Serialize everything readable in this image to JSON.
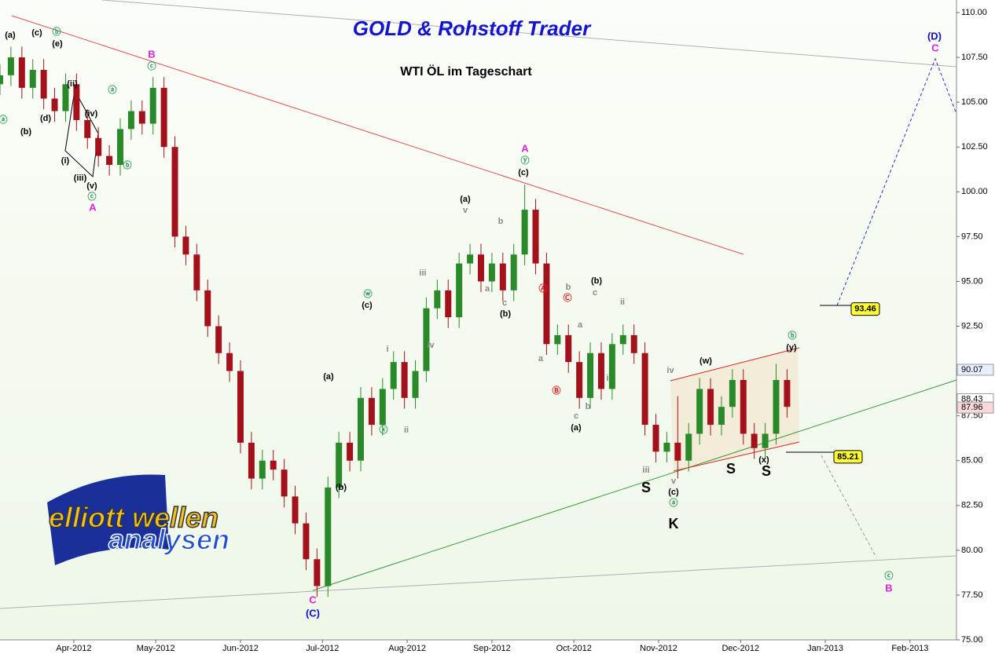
{
  "chart_data": {
    "type": "candlestick",
    "title": "GOLD & Rohstoff Trader",
    "subtitle": "WTI ÖL im Tageschart",
    "logo": [
      "elliott wellen",
      "analysen"
    ],
    "up_color": "#2a8a2a",
    "down_color": "#a3121c",
    "xlim": [
      0,
      350
    ],
    "xticks": [
      {
        "value": 27,
        "label": "Apr-2012"
      },
      {
        "value": 57,
        "label": "May-2012"
      },
      {
        "value": 88,
        "label": "Jun-2012"
      },
      {
        "value": 118,
        "label": "Jul-2012"
      },
      {
        "value": 149,
        "label": "Aug-2012"
      },
      {
        "value": 180,
        "label": "Sep-2012"
      },
      {
        "value": 210,
        "label": "Oct-2012"
      },
      {
        "value": 241,
        "label": "Nov-2012"
      },
      {
        "value": 271,
        "label": "Dec-2012"
      },
      {
        "value": 302,
        "label": "Jan-2013"
      },
      {
        "value": 333,
        "label": "Feb-2013"
      }
    ],
    "ylim": [
      75,
      110.7
    ],
    "yticks": [
      {
        "value": 75,
        "label": "75.00"
      },
      {
        "value": 77.5,
        "label": "77.50"
      },
      {
        "value": 80,
        "label": "80.00"
      },
      {
        "value": 82.5,
        "label": "82.50"
      },
      {
        "value": 85,
        "label": "85.00"
      },
      {
        "value": 87.5,
        "label": "87.50"
      },
      {
        "value": 90,
        "label": "90.00"
      },
      {
        "value": 92.5,
        "label": "92.50"
      },
      {
        "value": 95,
        "label": "95.00"
      },
      {
        "value": 97.5,
        "label": "97.50"
      },
      {
        "value": 100,
        "label": "100.00"
      },
      {
        "value": 102.5,
        "label": "102.50"
      },
      {
        "value": 105,
        "label": "105.00"
      },
      {
        "value": 107.5,
        "label": "107.50"
      },
      {
        "value": 110,
        "label": "110.00"
      }
    ],
    "x": [
      0,
      4,
      8,
      12,
      16,
      20,
      24,
      28,
      32,
      36,
      40,
      44,
      48,
      52,
      56,
      60,
      64,
      68,
      72,
      76,
      80,
      84,
      88,
      92,
      96,
      100,
      104,
      108,
      112,
      116,
      120,
      124,
      128,
      132,
      136,
      140,
      144,
      148,
      152,
      156,
      160,
      164,
      168,
      172,
      176,
      180,
      184,
      188,
      192,
      196,
      200,
      204,
      208,
      212,
      216,
      220,
      224,
      228,
      232,
      236,
      240,
      244,
      248,
      252,
      256,
      260,
      264,
      268,
      272,
      276,
      280,
      284,
      288
    ],
    "open": [
      106.0,
      106.5,
      107.5,
      105.8,
      106.8,
      105.2,
      104.5,
      106.0,
      104.0,
      103.0,
      102.0,
      101.5,
      103.5,
      104.5,
      103.8,
      105.8,
      102.5,
      97.5,
      96.5,
      94.5,
      92.5,
      91.0,
      90.0,
      86.0,
      84.0,
      85.0,
      84.5,
      83.0,
      81.5,
      79.5,
      78.0,
      83.5,
      86.0,
      85.0,
      88.5,
      87.0,
      89.0,
      90.5,
      88.5,
      90.0,
      93.5,
      94.5,
      93.0,
      96.0,
      96.5,
      95.0,
      96.0,
      94.5,
      96.5,
      99.0,
      96.0,
      91.5,
      92.0,
      90.5,
      88.5,
      91.0,
      89.0,
      91.5,
      92.0,
      91.0,
      87.0,
      85.5,
      86.0,
      85.0,
      86.5,
      89.0,
      87.0,
      88.0,
      89.5,
      86.5,
      85.7,
      86.5,
      89.5
    ],
    "high": [
      107.1,
      108.1,
      108.1,
      107.4,
      107.4,
      105.8,
      106.6,
      106.6,
      104.6,
      103.6,
      102.6,
      104.1,
      105.1,
      105.1,
      106.4,
      106.4,
      103.1,
      98.1,
      97.1,
      95.1,
      93.1,
      91.6,
      90.6,
      86.6,
      85.6,
      85.6,
      85.1,
      83.6,
      82.1,
      80.1,
      84.1,
      86.6,
      86.6,
      89.1,
      89.1,
      89.6,
      91.1,
      91.1,
      90.6,
      94.1,
      95.1,
      95.1,
      96.6,
      97.1,
      97.1,
      96.6,
      96.6,
      97.1,
      100.4,
      99.6,
      96.6,
      92.6,
      92.6,
      91.1,
      91.6,
      91.6,
      92.1,
      92.6,
      92.6,
      91.6,
      87.6,
      86.6,
      88.6,
      87.1,
      89.6,
      89.6,
      88.6,
      90.1,
      90.1,
      87.1,
      87.1,
      90.4,
      90.1
    ],
    "low": [
      105.4,
      105.9,
      105.2,
      105.2,
      104.6,
      103.9,
      103.9,
      103.4,
      102.4,
      101.4,
      100.9,
      100.9,
      102.9,
      103.2,
      103.2,
      101.9,
      96.9,
      95.9,
      93.9,
      91.9,
      90.4,
      89.4,
      85.4,
      83.4,
      83.4,
      83.9,
      82.4,
      80.9,
      78.9,
      77.4,
      77.4,
      82.9,
      84.4,
      84.4,
      86.4,
      86.4,
      88.4,
      87.9,
      87.9,
      89.4,
      92.9,
      92.4,
      92.4,
      95.4,
      94.4,
      94.4,
      93.9,
      93.9,
      95.9,
      95.4,
      90.9,
      90.9,
      89.9,
      87.9,
      87.9,
      88.4,
      88.4,
      90.9,
      90.4,
      86.4,
      84.9,
      84.9,
      84.0,
      84.4,
      85.9,
      86.4,
      86.4,
      87.4,
      85.9,
      85.1,
      85.1,
      85.9,
      87.4
    ],
    "close": [
      106.5,
      107.5,
      105.8,
      106.8,
      105.2,
      104.5,
      106.0,
      104.0,
      103.0,
      102.0,
      101.5,
      103.5,
      104.5,
      103.8,
      105.8,
      102.5,
      97.5,
      96.5,
      94.5,
      92.5,
      91.0,
      90.0,
      86.0,
      84.0,
      85.0,
      84.5,
      83.0,
      81.5,
      79.5,
      78.0,
      83.5,
      86.0,
      85.0,
      88.5,
      87.0,
      89.0,
      90.5,
      88.5,
      90.0,
      93.5,
      94.5,
      93.0,
      96.0,
      96.5,
      95.0,
      96.0,
      94.5,
      96.5,
      99.0,
      96.0,
      91.5,
      92.0,
      90.5,
      88.5,
      91.0,
      89.0,
      91.5,
      92.0,
      91.0,
      87.0,
      85.5,
      86.0,
      85.0,
      86.5,
      89.0,
      87.0,
      88.0,
      89.5,
      86.5,
      85.7,
      86.5,
      89.5,
      88.0
    ],
    "axis_tags": [
      90.07,
      88.43,
      87.96
    ],
    "level_tags": [
      93.46,
      85.21
    ],
    "annotations": [
      {
        "text": "(a)",
        "color": "#000"
      },
      {
        "text": "(c)",
        "color": "#000"
      },
      {
        "text": "ⓑ",
        "color": "#2e9b5e"
      },
      {
        "text": "(e)",
        "color": "#000"
      },
      {
        "text": "(d)",
        "color": "#000"
      },
      {
        "text": "(b)",
        "color": "#000"
      },
      {
        "text": "ⓐ",
        "color": "#2e9b5e"
      },
      {
        "text": "(ii)",
        "color": "#000"
      },
      {
        "text": "(iv)",
        "color": "#000"
      },
      {
        "text": "(i)",
        "color": "#000"
      },
      {
        "text": "(iii)",
        "color": "#000"
      },
      {
        "text": "(v)",
        "color": "#000"
      },
      {
        "text": "ⓒ",
        "color": "#2e9b5e"
      },
      {
        "text": "A",
        "color": "#e020e0"
      },
      {
        "text": "B",
        "color": "#e020e0"
      },
      {
        "text": "ⓒ",
        "color": "#2e9b5e"
      },
      {
        "text": "ⓐ",
        "color": "#2e9b5e"
      },
      {
        "text": "ⓑ",
        "color": "#2e9b5e"
      },
      {
        "text": "A",
        "color": "#e020e0"
      },
      {
        "text": "ⓨ",
        "color": "#2e9b5e"
      },
      {
        "text": "(c)",
        "color": "#000"
      },
      {
        "text": "(a)",
        "color": "#000"
      },
      {
        "text": "v",
        "color": "#888"
      },
      {
        "text": "b",
        "color": "#888"
      },
      {
        "text": "iii",
        "color": "#888"
      },
      {
        "text": "iv",
        "color": "#888"
      },
      {
        "text": "i",
        "color": "#888"
      },
      {
        "text": "ii",
        "color": "#888"
      },
      {
        "text": "ⓦ",
        "color": "#2e9b5e"
      },
      {
        "text": "(c)",
        "color": "#000"
      },
      {
        "text": "ⓧ",
        "color": "#2e9b5e"
      },
      {
        "text": "(a)",
        "color": "#000"
      },
      {
        "text": "(b)",
        "color": "#000"
      },
      {
        "text": "C",
        "color": "#e020e0"
      },
      {
        "text": "(C)",
        "color": "#1010d0"
      },
      {
        "text": "a",
        "color": "#888"
      },
      {
        "text": "c",
        "color": "#888"
      },
      {
        "text": "(b)",
        "color": "#000"
      },
      {
        "text": "Ⓐ",
        "color": "#e02020"
      },
      {
        "text": "Ⓒ",
        "color": "#e02020"
      },
      {
        "text": "b",
        "color": "#888"
      },
      {
        "text": "Ⓑ",
        "color": "#e02020"
      },
      {
        "text": "a",
        "color": "#888"
      },
      {
        "text": "(b)",
        "color": "#000"
      },
      {
        "text": "c",
        "color": "#888"
      },
      {
        "text": "a",
        "color": "#888"
      },
      {
        "text": "i",
        "color": "#888"
      },
      {
        "text": "b",
        "color": "#888"
      },
      {
        "text": "c",
        "color": "#888"
      },
      {
        "text": "(a)",
        "color": "#000"
      },
      {
        "text": "ii",
        "color": "#888"
      },
      {
        "text": "iii",
        "color": "#888"
      },
      {
        "text": "S",
        "color": "#000"
      },
      {
        "text": "iv",
        "color": "#888"
      },
      {
        "text": "v",
        "color": "#888"
      },
      {
        "text": "(c)",
        "color": "#000"
      },
      {
        "text": "ⓐ",
        "color": "#2e9b5e"
      },
      {
        "text": "K",
        "color": "#000"
      },
      {
        "text": "(w)",
        "color": "#000"
      },
      {
        "text": "S",
        "color": "#000"
      },
      {
        "text": "(x)",
        "color": "#000"
      },
      {
        "text": "S",
        "color": "#000"
      },
      {
        "text": "ⓑ",
        "color": "#2e9b5e"
      },
      {
        "text": "(y)",
        "color": "#000"
      },
      {
        "text": "(D)",
        "color": "#1010d0"
      },
      {
        "text": "C",
        "color": "#e020e0"
      },
      {
        "text": "ⓒ",
        "color": "#2e9b5e"
      },
      {
        "text": "B",
        "color": "#e020e0"
      }
    ]
  }
}
